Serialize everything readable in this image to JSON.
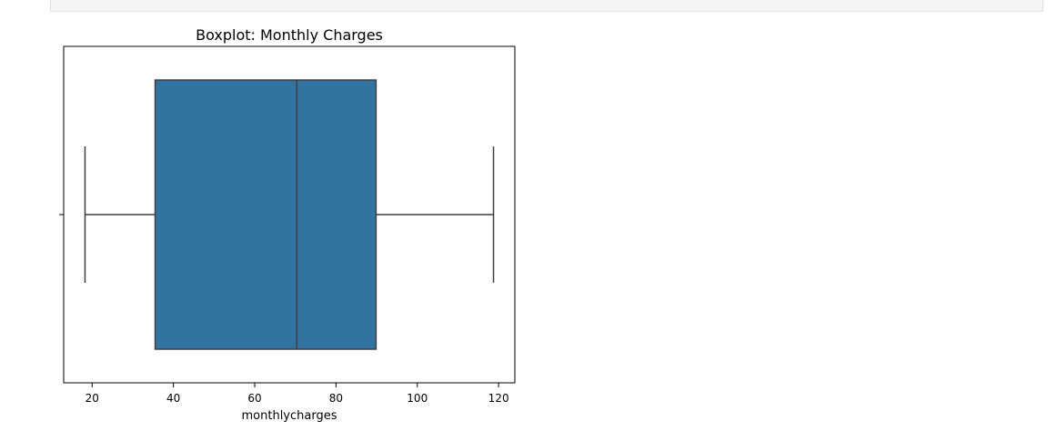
{
  "chart_data": {
    "type": "boxplot",
    "title": "Boxplot: Monthly Charges",
    "xlabel": "monthlycharges",
    "ylabel": "",
    "orientation": "horizontal",
    "xlim": [
      13,
      124
    ],
    "xticks": [
      20,
      40,
      60,
      80,
      100,
      120
    ],
    "box": {
      "whisker_low": 18.25,
      "q1": 35.5,
      "median": 70.35,
      "q3": 89.85,
      "whisker_high": 118.75
    },
    "colors": {
      "box_fill": "#3274a1",
      "lines": "#3f3f3f"
    },
    "grid": false
  }
}
